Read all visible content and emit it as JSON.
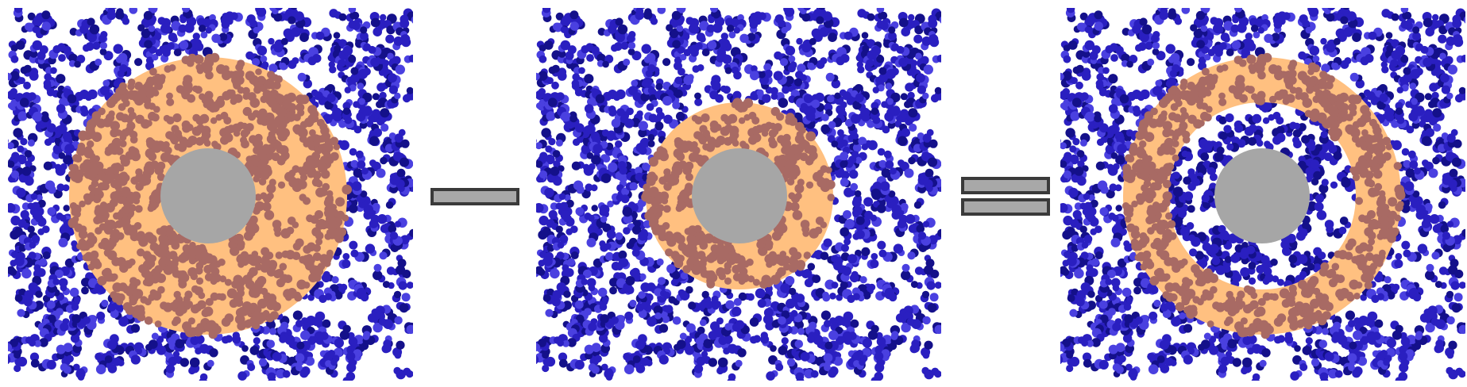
{
  "diagram": {
    "panels": [
      {
        "id": "outer-shell",
        "shell": "outer"
      },
      {
        "id": "inner-shell",
        "shell": "inner"
      },
      {
        "id": "difference-shell",
        "shell": "difference"
      }
    ],
    "operators": [
      "minus",
      "equals"
    ]
  },
  "colors": {
    "background": "#ffffff",
    "particle_blue": "#2a1fc0",
    "particle_blue_dark": "#14108a",
    "particle_highlight": "#4a40e0",
    "shell_orange": "#ffc080",
    "particle_in_shell": "#a86a64",
    "core_gray": "#a6a6a6",
    "operator_fill": "#a8a8a8",
    "operator_stroke": "#3a3a3a"
  }
}
